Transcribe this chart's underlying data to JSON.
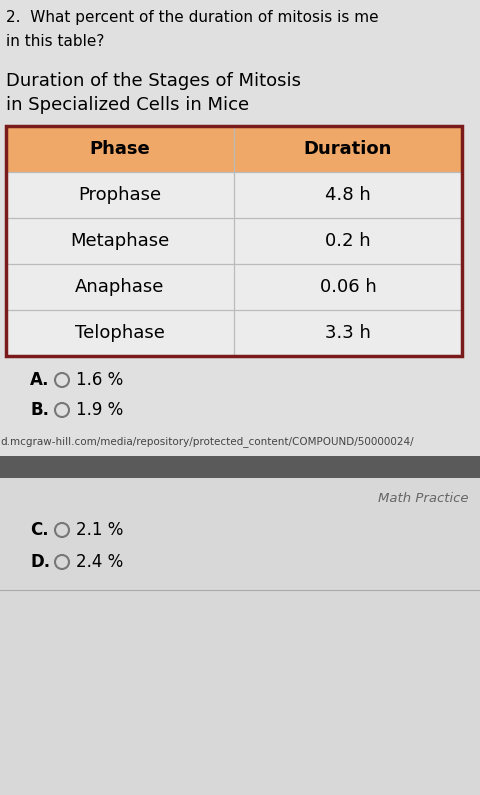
{
  "question_text_1": "2.  What percent of the duration of mitosis is me",
  "question_text_2": "in this table?",
  "title_line1": "Duration of the Stages of Mitosis",
  "title_line2": "in Specialized Cells in Mice",
  "header": [
    "Phase",
    "Duration"
  ],
  "rows": [
    [
      "Prophase",
      "4.8 h"
    ],
    [
      "Metaphase",
      "0.2 h"
    ],
    [
      "Anaphase",
      "0.06 h"
    ],
    [
      "Telophase",
      "3.3 h"
    ]
  ],
  "choices_top": [
    "A.",
    "B."
  ],
  "choices_top_text": [
    "1.6 %",
    "1.9 %"
  ],
  "choices_bottom": [
    "C.",
    "D."
  ],
  "choices_bottom_text": [
    "2.1 %",
    "2.4 %"
  ],
  "url_text": "d.mcgraw-hill.com/media/repository/protected_content/COMPOUND/50000024/",
  "math_practice_text": "Math Practice",
  "page_bg": "#d9d9d9",
  "white_section_bg": "#e8e8e8",
  "content_bg": "#e0e0e0",
  "header_bg": "#f0a868",
  "row_bg": "#ececec",
  "table_border_color": "#7a1a1a",
  "table_text_color": "#000000",
  "question_color": "#000000",
  "dark_strip_color": "#5a5a5a",
  "url_color": "#444444",
  "math_practice_color": "#666666"
}
